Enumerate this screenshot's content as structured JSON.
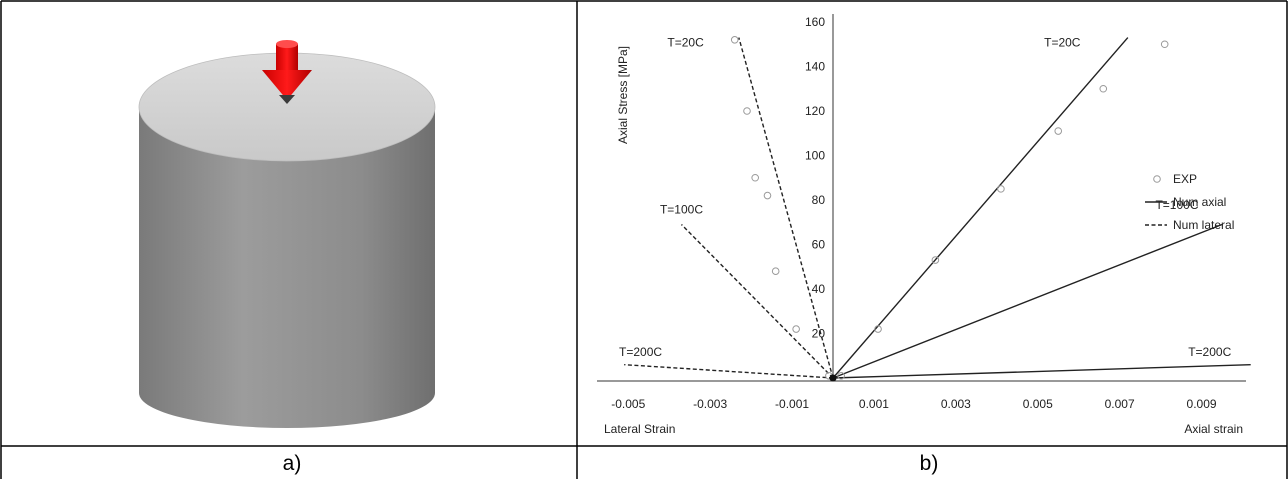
{
  "panels": {
    "a": {
      "caption": "a)"
    },
    "b": {
      "caption": "b)"
    }
  },
  "chart_data": {
    "type": "line",
    "title": "",
    "ylabel": "Axial Stress [MPa]",
    "xlabel_left": "Lateral Strain",
    "xlabel_right": "Axial strain",
    "xlim": [
      -0.005,
      0.01
    ],
    "ylim": [
      0,
      160
    ],
    "x_ticks": [
      "-0.005",
      "-0.003",
      "-0.001",
      "0.001",
      "0.003",
      "0.005",
      "0.007",
      "0.009"
    ],
    "x_tick_values": [
      -0.005,
      -0.003,
      -0.001,
      0.001,
      0.003,
      0.005,
      0.007,
      0.009
    ],
    "y_ticks": [
      "20",
      "40",
      "60",
      "80",
      "100",
      "120",
      "140",
      "160"
    ],
    "y_tick_values": [
      20,
      40,
      60,
      80,
      100,
      120,
      140,
      160
    ],
    "grid": false,
    "legend": {
      "placement": "right",
      "entries": [
        {
          "name": "EXP",
          "style": "marker"
        },
        {
          "name": "Num axial",
          "style": "solid"
        },
        {
          "name": "Num lateral",
          "style": "dashed"
        }
      ]
    },
    "series": [
      {
        "name": "Num axial",
        "label": "T=20C",
        "style": "solid",
        "x": [
          0,
          0.0072
        ],
        "y": [
          0,
          153
        ]
      },
      {
        "name": "Num axial",
        "label": "T=100C",
        "style": "solid",
        "x": [
          0,
          0.0095
        ],
        "y": [
          0,
          69
        ]
      },
      {
        "name": "Num axial",
        "label": "T=200C",
        "style": "solid",
        "x": [
          0,
          0.0102
        ],
        "y": [
          0,
          6
        ]
      },
      {
        "name": "Num lateral",
        "label": "T=20C",
        "style": "dashed",
        "x": [
          0,
          -0.0023
        ],
        "y": [
          0,
          153
        ]
      },
      {
        "name": "Num lateral",
        "label": "T=100C",
        "style": "dashed",
        "x": [
          0,
          -0.0037
        ],
        "y": [
          0,
          69
        ]
      },
      {
        "name": "Num lateral",
        "label": "T=200C",
        "style": "dashed",
        "x": [
          0,
          -0.0051
        ],
        "y": [
          0,
          6
        ]
      }
    ],
    "exp_points": {
      "name": "EXP",
      "x": [
        0.0002,
        0.0011,
        0.0025,
        0.0041,
        0.0055,
        0.0066,
        0.0081,
        -0.0001,
        -0.0009,
        -0.0014,
        -0.0016,
        -0.0019,
        -0.0021,
        -0.0024
      ],
      "y": [
        1,
        22,
        53,
        85,
        111,
        130,
        150,
        1,
        22,
        48,
        82,
        90,
        120,
        152
      ]
    },
    "annotations": [
      {
        "text": "T=20C",
        "x": 0.0056,
        "y": 149
      },
      {
        "text": "T=100C",
        "x": 0.0084,
        "y": 76
      },
      {
        "text": "T=200C",
        "x": 0.0092,
        "y": 10
      },
      {
        "text": "T=20C",
        "x": -0.0036,
        "y": 149
      },
      {
        "text": "T=100C",
        "x": -0.0037,
        "y": 74
      },
      {
        "text": "T=200C",
        "x": -0.0047,
        "y": 10
      }
    ]
  }
}
